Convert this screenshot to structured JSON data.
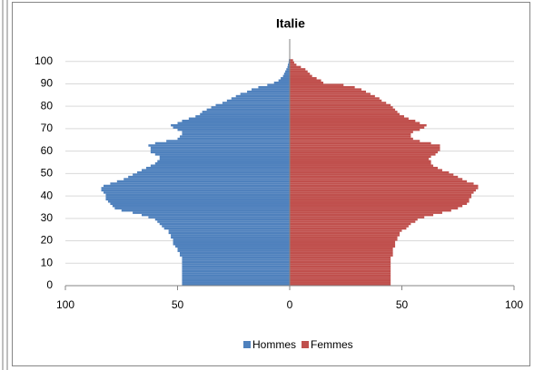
{
  "chart_data": {
    "type": "pyramid",
    "title": "Italie",
    "y": [
      0,
      1,
      2,
      3,
      4,
      5,
      6,
      7,
      8,
      9,
      10,
      11,
      12,
      13,
      14,
      15,
      16,
      17,
      18,
      19,
      20,
      21,
      22,
      23,
      24,
      25,
      26,
      27,
      28,
      29,
      30,
      31,
      32,
      33,
      34,
      35,
      36,
      37,
      38,
      39,
      40,
      41,
      42,
      43,
      44,
      45,
      46,
      47,
      48,
      49,
      50,
      51,
      52,
      53,
      54,
      55,
      56,
      57,
      58,
      59,
      60,
      61,
      62,
      63,
      64,
      65,
      66,
      67,
      68,
      69,
      70,
      71,
      72,
      73,
      74,
      75,
      76,
      77,
      78,
      79,
      80,
      81,
      82,
      83,
      84,
      85,
      86,
      87,
      88,
      89,
      90,
      91,
      92,
      93,
      94,
      95,
      96,
      97,
      98,
      99,
      100
    ],
    "series": [
      {
        "name": "Hommes",
        "color": "#4f81bd",
        "values": [
          -48,
          -48,
          -48,
          -48,
          -48,
          -48,
          -48,
          -48,
          -48,
          -48,
          -48,
          -48,
          -48,
          -49,
          -49,
          -50,
          -50,
          -51,
          -52,
          -52,
          -52,
          -53,
          -53,
          -54,
          -54,
          -56,
          -57,
          -58,
          -59,
          -60,
          -63,
          -66,
          -70,
          -75,
          -78,
          -79,
          -80,
          -81,
          -82,
          -82,
          -82,
          -83,
          -84,
          -84,
          -83,
          -80,
          -77,
          -74,
          -72,
          -70,
          -68,
          -66,
          -64,
          -62,
          -60,
          -59,
          -58,
          -58,
          -60,
          -62,
          -62,
          -62,
          -63,
          -60,
          -55,
          -50,
          -49,
          -48,
          -48,
          -50,
          -52,
          -53,
          -50,
          -48,
          -45,
          -42,
          -40,
          -39,
          -37,
          -35,
          -33,
          -30,
          -28,
          -26,
          -24,
          -22,
          -19,
          -17,
          -14,
          -10,
          -7,
          -5,
          -4,
          -3,
          -2.5,
          -2,
          -1.5,
          -1,
          -0.8,
          -0.5,
          -0.4
        ]
      },
      {
        "name": "Femmes",
        "color": "#c0504d",
        "values": [
          45,
          45,
          45,
          45,
          45,
          45,
          45,
          45,
          45,
          45,
          45,
          45,
          45,
          46,
          46,
          46,
          46,
          47,
          47,
          47,
          48,
          48,
          49,
          49,
          50,
          52,
          53,
          54,
          56,
          57,
          60,
          64,
          68,
          72,
          75,
          77,
          79,
          80,
          80,
          81,
          81,
          82,
          83,
          84,
          84,
          82,
          79,
          77,
          75,
          73,
          71,
          68,
          66,
          64,
          63,
          63,
          62,
          63,
          65,
          66,
          67,
          67,
          67,
          63,
          58,
          55,
          54,
          54,
          55,
          58,
          60,
          61,
          58,
          56,
          53,
          51,
          49,
          48,
          47,
          46,
          45,
          43,
          41,
          40,
          38,
          36,
          34,
          32,
          29,
          24,
          15,
          14,
          12,
          10,
          9,
          8,
          7,
          5,
          3,
          2,
          1.5
        ]
      }
    ],
    "xlim": [
      -100,
      100
    ],
    "xticks": [
      {
        "value": -100,
        "label": "100"
      },
      {
        "value": -50,
        "label": "50"
      },
      0,
      50,
      {
        "value": 100,
        "label": "100"
      }
    ],
    "ylim": [
      0,
      110
    ],
    "yticks": [
      0,
      10,
      20,
      30,
      40,
      50,
      60,
      70,
      80,
      90,
      100
    ],
    "grid": true,
    "legend": "bottom"
  }
}
